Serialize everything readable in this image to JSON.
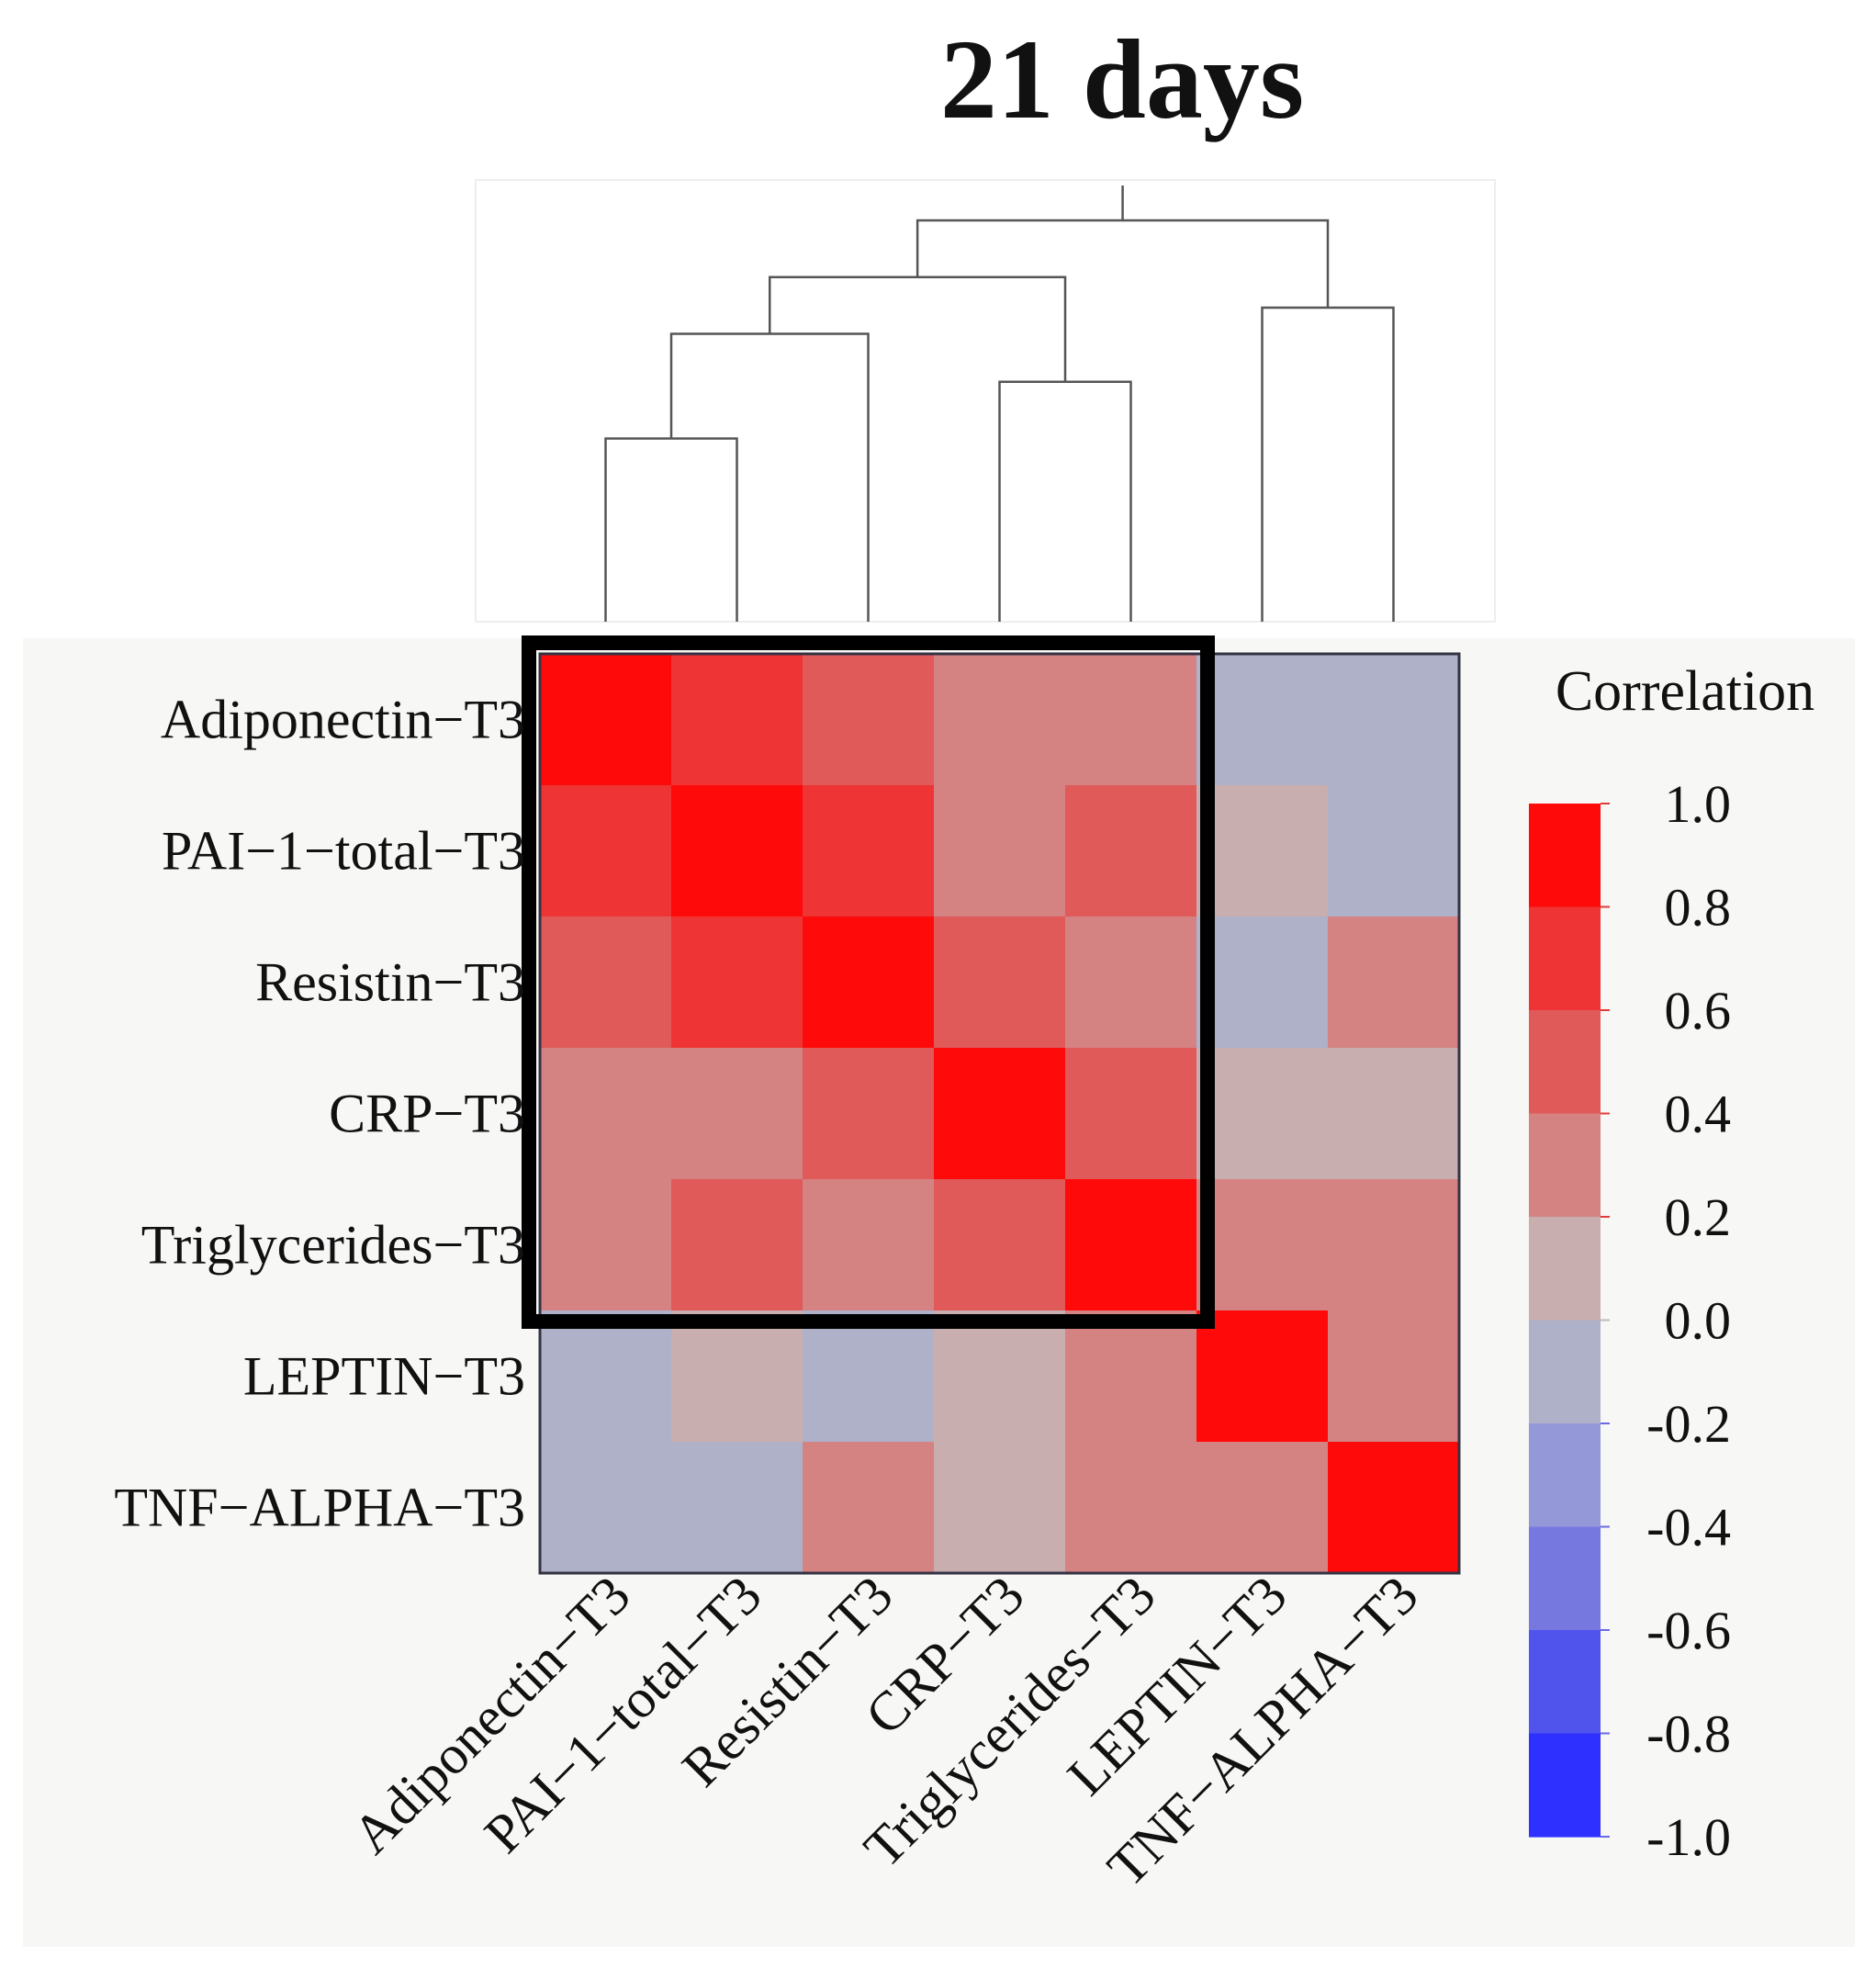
{
  "chart_data": {
    "type": "heatmap",
    "title": "21 days",
    "variables": [
      "Adiponectin−T3",
      "PAI−1−total−T3",
      "Resistin−T3",
      "CRP−T3",
      "Triglycerides−T3",
      "LEPTIN−T3",
      "TNF−ALPHA−T3"
    ],
    "matrix": [
      [
        1.0,
        0.7,
        0.5,
        0.3,
        0.3,
        -0.1,
        -0.1
      ],
      [
        0.7,
        1.0,
        0.7,
        0.3,
        0.5,
        0.1,
        -0.1
      ],
      [
        0.5,
        0.7,
        1.0,
        0.5,
        0.3,
        -0.1,
        0.3
      ],
      [
        0.3,
        0.3,
        0.5,
        1.0,
        0.5,
        0.1,
        0.1
      ],
      [
        0.3,
        0.5,
        0.3,
        0.5,
        1.0,
        0.3,
        0.3
      ],
      [
        -0.1,
        0.1,
        -0.1,
        0.1,
        0.3,
        1.0,
        0.3
      ],
      [
        -0.1,
        -0.1,
        0.3,
        0.1,
        0.3,
        0.3,
        1.0
      ]
    ],
    "highlight_cluster": {
      "from": 0,
      "to": 4
    },
    "legend": {
      "title": "Correlation",
      "ticks": [
        "1.0",
        "0.8",
        "0.6",
        "0.4",
        "0.2",
        "0.0",
        "-0.2",
        "-0.4",
        "-0.6",
        "-0.8",
        "-1.0"
      ],
      "bins": [
        {
          "min": 0.8,
          "max": 1.0,
          "color": "#ff0a0a"
        },
        {
          "min": 0.6,
          "max": 0.8,
          "color": "#ee3434"
        },
        {
          "min": 0.4,
          "max": 0.6,
          "color": "#e05a5a"
        },
        {
          "min": 0.2,
          "max": 0.4,
          "color": "#d48282"
        },
        {
          "min": 0.0,
          "max": 0.2,
          "color": "#c8aeae"
        },
        {
          "min": -0.2,
          "max": 0.0,
          "color": "#aeb1c8"
        },
        {
          "min": -0.4,
          "max": -0.2,
          "color": "#9598d8"
        },
        {
          "min": -0.6,
          "max": -0.4,
          "color": "#7678e0"
        },
        {
          "min": -0.8,
          "max": -0.6,
          "color": "#5054ec"
        },
        {
          "min": -1.0,
          "max": -0.8,
          "color": "#2e30ff"
        }
      ]
    },
    "dendrogram": {
      "leaf_order": [
        "Adiponectin−T3",
        "PAI−1−total−T3",
        "Resistin−T3",
        "CRP−T3",
        "Triglycerides−T3",
        "LEPTIN−T3",
        "TNF−ALPHA−T3"
      ],
      "merges": [
        {
          "left": "L0",
          "right": "L1",
          "height": 0.42
        },
        {
          "left": "M0",
          "right": "L2",
          "height": 0.66
        },
        {
          "left": "L3",
          "right": "L4",
          "height": 0.55
        },
        {
          "left": "M1",
          "right": "M2",
          "height": 0.79
        },
        {
          "left": "L5",
          "right": "L6",
          "height": 0.72
        },
        {
          "left": "M3",
          "right": "M4",
          "height": 0.92
        }
      ]
    }
  }
}
